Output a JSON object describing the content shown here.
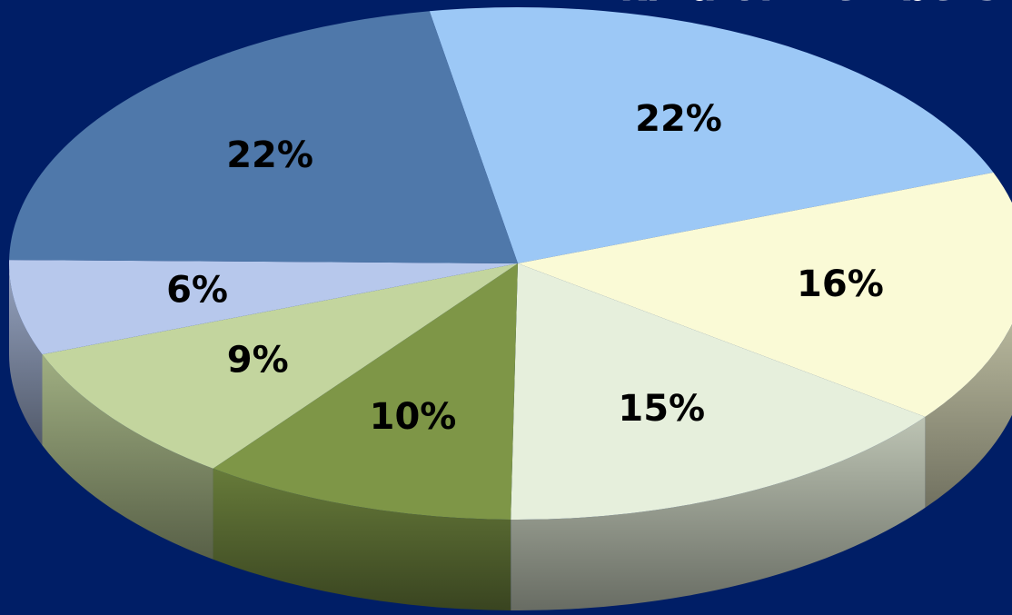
{
  "title": "kind of members",
  "chart_data": {
    "type": "pie",
    "title": "kind of members",
    "slices": [
      {
        "label": "22%",
        "value": 22,
        "color": "#9cc8f6"
      },
      {
        "label": "16%",
        "value": 16,
        "color": "#fafad6"
      },
      {
        "label": "15%",
        "value": 15,
        "color": "#e6efdc"
      },
      {
        "label": "10%",
        "value": 10,
        "color": "#7e9647"
      },
      {
        "label": "9%",
        "value": 9,
        "color": "#c3d59e"
      },
      {
        "label": "6%",
        "value": 6,
        "color": "#b7c8ec"
      },
      {
        "label": "22%",
        "value": 22,
        "color": "#4f78aa"
      }
    ]
  }
}
